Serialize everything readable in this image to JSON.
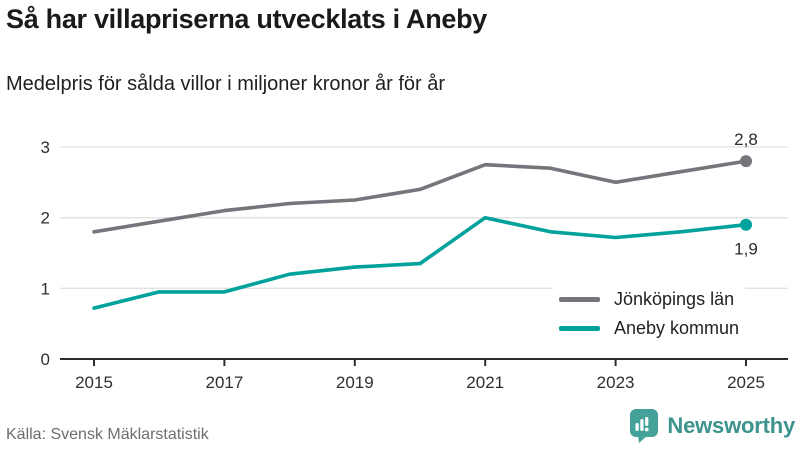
{
  "header": {
    "title": "Så har villapriserna utvecklats i Aneby",
    "subtitle": "Medelpris för sålda villor i miljoner kronor år för år"
  },
  "footer": {
    "source": "Källa: Svensk Mäklarstatistik",
    "brand": "Newsworthy",
    "brand_color": "#45a29a"
  },
  "chart_data": {
    "type": "line",
    "title": "Så har villapriserna utvecklats i Aneby",
    "subtitle": "Medelpris för sålda villor i miljoner kronor år för år",
    "x": [
      2015,
      2016,
      2017,
      2018,
      2019,
      2020,
      2021,
      2022,
      2023,
      2024,
      2025
    ],
    "x_tick_labels": [
      "2015",
      "2017",
      "2019",
      "2021",
      "2023",
      "2025"
    ],
    "y_ticks": [
      0,
      1,
      2,
      3
    ],
    "ylim": [
      0,
      3
    ],
    "grid": "horizontal",
    "legend_position": "inside-bottom-right",
    "series": [
      {
        "name": "Jönköpings län",
        "color": "#76757c",
        "values": [
          1.8,
          1.95,
          2.1,
          2.2,
          2.25,
          2.4,
          2.75,
          2.7,
          2.5,
          2.65,
          2.8
        ],
        "end_label": "2,8",
        "end_label_position": "above"
      },
      {
        "name": "Aneby kommun",
        "color": "#00a29b",
        "values": [
          0.72,
          0.95,
          0.95,
          1.2,
          1.3,
          1.35,
          2.0,
          1.8,
          1.72,
          1.8,
          1.9
        ],
        "end_label": "1,9",
        "end_label_position": "below"
      }
    ]
  }
}
